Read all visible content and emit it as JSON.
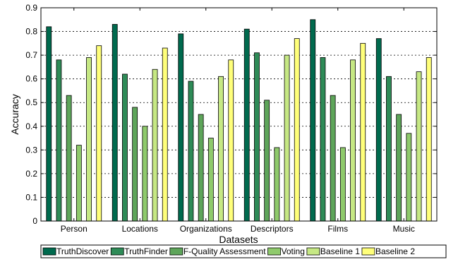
{
  "chart_data": {
    "type": "bar",
    "xlabel": "Datasets",
    "ylabel": "Accuracy",
    "ylim": [
      0,
      0.9
    ],
    "yticks": [
      0,
      0.1,
      0.2,
      0.3,
      0.4,
      0.5,
      0.6,
      0.7,
      0.8,
      0.9
    ],
    "ytick_labels": [
      "0",
      "0.1",
      "0.2",
      "0.3",
      "0.4",
      "0.5",
      "0.6",
      "0.7",
      "0.8",
      "0.9"
    ],
    "grid": true,
    "legend_position": "bottom",
    "categories": [
      "Person",
      "Locations",
      "Organizations",
      "Descriptors",
      "Films",
      "Music"
    ],
    "series": [
      {
        "name": "TruthDiscover",
        "color": "#006a4e",
        "values": [
          0.82,
          0.83,
          0.79,
          0.81,
          0.85,
          0.77
        ]
      },
      {
        "name": "TruthFinder",
        "color": "#2e8b57",
        "values": [
          0.68,
          0.62,
          0.59,
          0.71,
          0.69,
          0.61
        ]
      },
      {
        "name": "F-Quality Assessment",
        "color": "#5ea55a",
        "values": [
          0.53,
          0.48,
          0.45,
          0.51,
          0.53,
          0.45
        ]
      },
      {
        "name": "Voting",
        "color": "#8fca6c",
        "values": [
          0.32,
          0.4,
          0.35,
          0.31,
          0.31,
          0.37
        ]
      },
      {
        "name": "Baseline 1",
        "color": "#c6e884",
        "values": [
          0.69,
          0.64,
          0.61,
          0.7,
          0.68,
          0.63
        ]
      },
      {
        "name": "Baseline 2",
        "color": "#ffff7a",
        "values": [
          0.74,
          0.73,
          0.68,
          0.77,
          0.75,
          0.69
        ]
      }
    ]
  }
}
